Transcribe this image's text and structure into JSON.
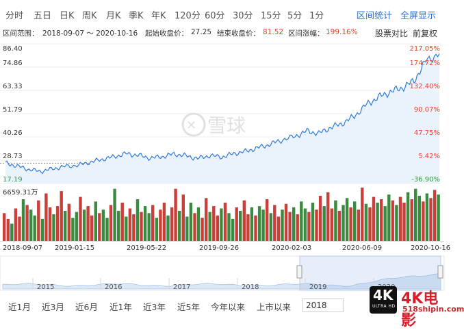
{
  "tabs": [
    {
      "label": "分时"
    },
    {
      "label": "五日"
    },
    {
      "label": "日K"
    },
    {
      "label": "周K"
    },
    {
      "label": "月K"
    },
    {
      "label": "季K"
    },
    {
      "label": "年K"
    },
    {
      "label": "120分"
    },
    {
      "label": "60分"
    },
    {
      "label": "30分"
    },
    {
      "label": "15分"
    },
    {
      "label": "5分"
    },
    {
      "label": "1分"
    }
  ],
  "actions": {
    "interval_stats": "区间统计",
    "fullscreen": "全屏显示"
  },
  "info": {
    "range_label": "区间范围：",
    "range_value": "2018-09-07 ～ 2020-10-16",
    "start_label": "起始收盘价：",
    "start_value": "27.25",
    "end_label": "结束收盘价：",
    "end_value": "81.52",
    "change_label": "区间涨幅：",
    "change_value": "199.16%",
    "compare": "股票对比",
    "adjust": "前复权"
  },
  "watermark": {
    "brand": "雪球"
  },
  "site_watermark": {
    "badge": "4K",
    "badge_sub": "ULTRA HD",
    "text": "4K电影",
    "url": "518shipin.com"
  },
  "chart_data": {
    "type": "line",
    "title": "",
    "price_axis": [
      "86.40",
      "74.86",
      "63.33",
      "51.79",
      "40.26",
      "28.73",
      "17.19"
    ],
    "price_values": [
      86.4,
      74.86,
      63.33,
      51.79,
      40.26,
      28.73,
      17.19
    ],
    "pct_axis": [
      "217.05%",
      "174.72%",
      "132.40%",
      "90.07%",
      "47.75%",
      "5.42%",
      "-36.90%"
    ],
    "ylim": [
      17.19,
      86.4
    ],
    "reference_price": 27.25,
    "volume_max_label": "6659.31万",
    "x_ticks": [
      "2018-09-07",
      "2019-01-15",
      "2019-05-22",
      "2019-09-26",
      "2020-02-03",
      "2020-06-09",
      "2020-10-16"
    ],
    "navigator_ticks": [
      "2015",
      "2016",
      "2017",
      "2018",
      "2019",
      "2020"
    ],
    "series": [
      {
        "x": [
          "2018-09-07",
          "2018-09-28",
          "2018-10-19",
          "2018-11-09",
          "2018-11-30",
          "2018-12-21",
          "2019-01-15",
          "2019-02-05",
          "2019-02-26",
          "2019-03-19",
          "2019-04-09",
          "2019-04-30",
          "2019-05-22",
          "2019-06-12",
          "2019-07-03",
          "2019-07-24",
          "2019-08-14",
          "2019-09-04",
          "2019-09-26",
          "2019-10-17",
          "2019-11-07",
          "2019-11-28",
          "2019-12-19",
          "2020-01-09",
          "2020-02-03",
          "2020-02-24",
          "2020-03-16",
          "2020-04-06",
          "2020-04-27",
          "2020-05-18",
          "2020-06-09",
          "2020-06-30",
          "2020-07-21",
          "2020-08-11",
          "2020-09-01",
          "2020-09-22",
          "2020-10-16"
        ],
        "values": [
          27.25,
          25.8,
          24.1,
          23.2,
          24.5,
          25.6,
          26.3,
          27.8,
          29.2,
          30.5,
          32.0,
          31.2,
          29.8,
          30.5,
          31.8,
          30.9,
          29.6,
          31.0,
          30.3,
          32.0,
          33.1,
          34.8,
          36.5,
          38.6,
          40.6,
          43.2,
          42.0,
          44.9,
          47.0,
          50.5,
          56.4,
          60.0,
          62.6,
          64.6,
          68.0,
          78.0,
          81.52
        ]
      }
    ],
    "volume": [
      24,
      19,
      15,
      28,
      21,
      36,
      31,
      27,
      22,
      35,
      19,
      41,
      29,
      23,
      30,
      43,
      26,
      32,
      20,
      25,
      38,
      27,
      30,
      22,
      34,
      24,
      27,
      20,
      31,
      45,
      26,
      33,
      21,
      28,
      23,
      36,
      25,
      30,
      24,
      31,
      20,
      27,
      33,
      22,
      29,
      45,
      26,
      40,
      21,
      33,
      24,
      29,
      20,
      37,
      25,
      30,
      22,
      28,
      33,
      24,
      19,
      29,
      26,
      35,
      23,
      29,
      22,
      30,
      27,
      36,
      24,
      31,
      21,
      27,
      32,
      25,
      29,
      23,
      34,
      28,
      25,
      33,
      27,
      39,
      30,
      42,
      28,
      35,
      26,
      31,
      37,
      29,
      34,
      27,
      46,
      32,
      29,
      38,
      33,
      36,
      30,
      40,
      35,
      31,
      38,
      33,
      42,
      36,
      45,
      39,
      34,
      41,
      37,
      44,
      40
    ]
  }
}
